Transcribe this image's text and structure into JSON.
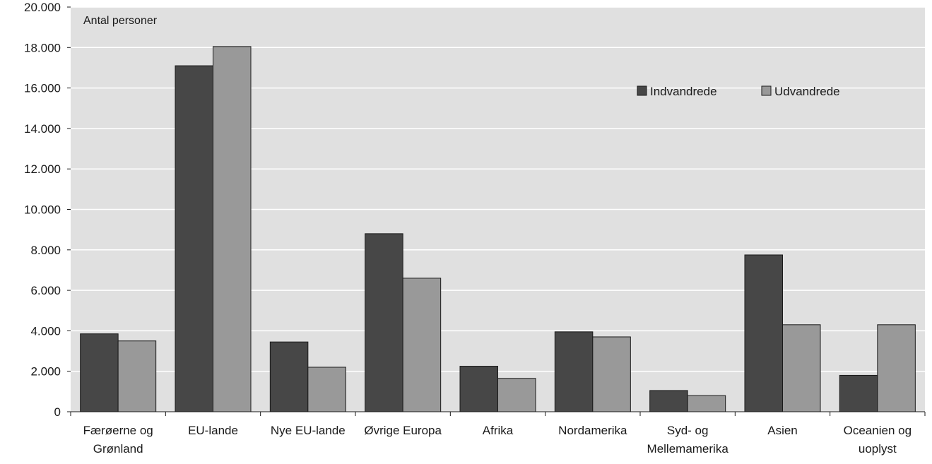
{
  "chart_data": {
    "type": "bar",
    "title": "",
    "xlabel": "",
    "ylabel": "Antal personer",
    "ylim": [
      0,
      20000
    ],
    "yticks": [
      "0",
      "2.000",
      "4.000",
      "6.000",
      "8.000",
      "10.000",
      "12.000",
      "14.000",
      "16.000",
      "18.000",
      "20.000"
    ],
    "grid": true,
    "legend_position": "top-right",
    "categories": [
      [
        "Færøerne og",
        "Grønland"
      ],
      [
        "EU-lande"
      ],
      [
        "Nye EU-lande"
      ],
      [
        "Øvrige Europa"
      ],
      [
        "Afrika"
      ],
      [
        "Nordamerika"
      ],
      [
        "Syd- og",
        "Mellemamerika"
      ],
      [
        "Asien"
      ],
      [
        "Oceanien og",
        "uoplyst"
      ]
    ],
    "series": [
      {
        "name": "Indvandrede",
        "color": "#474747",
        "values": [
          3850,
          17100,
          3450,
          8800,
          2250,
          3950,
          1050,
          7750,
          1800
        ]
      },
      {
        "name": "Udvandrede",
        "color": "#999999",
        "values": [
          3500,
          18050,
          2200,
          6600,
          1650,
          3700,
          800,
          4300,
          4300
        ]
      }
    ],
    "plot_background": "#e0e0e0",
    "grid_color": "#ffffff"
  }
}
